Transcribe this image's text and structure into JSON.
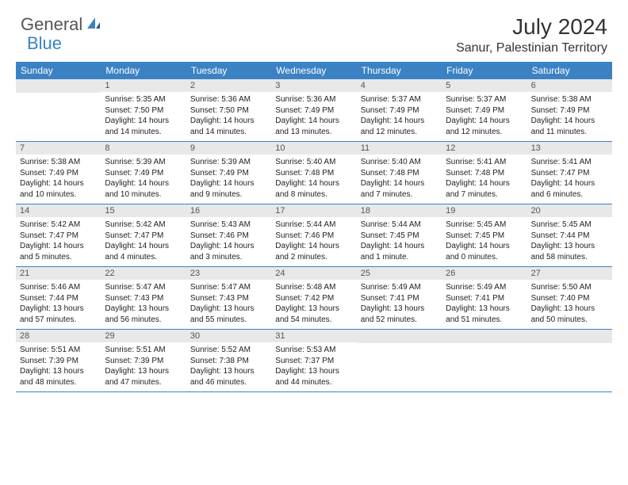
{
  "brand": {
    "part1": "General",
    "part2": "Blue"
  },
  "title": "July 2024",
  "location": "Sanur, Palestinian Territory",
  "colors": {
    "header_bg": "#3b82c4",
    "header_text": "#ffffff",
    "daynum_bg": "#e8e8e8",
    "text": "#222222",
    "rule": "#3b82c4"
  },
  "dayNames": [
    "Sunday",
    "Monday",
    "Tuesday",
    "Wednesday",
    "Thursday",
    "Friday",
    "Saturday"
  ],
  "weeks": [
    [
      null,
      {
        "d": "1",
        "sr": "Sunrise: 5:35 AM",
        "ss": "Sunset: 7:50 PM",
        "dl1": "Daylight: 14 hours",
        "dl2": "and 14 minutes."
      },
      {
        "d": "2",
        "sr": "Sunrise: 5:36 AM",
        "ss": "Sunset: 7:50 PM",
        "dl1": "Daylight: 14 hours",
        "dl2": "and 14 minutes."
      },
      {
        "d": "3",
        "sr": "Sunrise: 5:36 AM",
        "ss": "Sunset: 7:49 PM",
        "dl1": "Daylight: 14 hours",
        "dl2": "and 13 minutes."
      },
      {
        "d": "4",
        "sr": "Sunrise: 5:37 AM",
        "ss": "Sunset: 7:49 PM",
        "dl1": "Daylight: 14 hours",
        "dl2": "and 12 minutes."
      },
      {
        "d": "5",
        "sr": "Sunrise: 5:37 AM",
        "ss": "Sunset: 7:49 PM",
        "dl1": "Daylight: 14 hours",
        "dl2": "and 12 minutes."
      },
      {
        "d": "6",
        "sr": "Sunrise: 5:38 AM",
        "ss": "Sunset: 7:49 PM",
        "dl1": "Daylight: 14 hours",
        "dl2": "and 11 minutes."
      }
    ],
    [
      {
        "d": "7",
        "sr": "Sunrise: 5:38 AM",
        "ss": "Sunset: 7:49 PM",
        "dl1": "Daylight: 14 hours",
        "dl2": "and 10 minutes."
      },
      {
        "d": "8",
        "sr": "Sunrise: 5:39 AM",
        "ss": "Sunset: 7:49 PM",
        "dl1": "Daylight: 14 hours",
        "dl2": "and 10 minutes."
      },
      {
        "d": "9",
        "sr": "Sunrise: 5:39 AM",
        "ss": "Sunset: 7:49 PM",
        "dl1": "Daylight: 14 hours",
        "dl2": "and 9 minutes."
      },
      {
        "d": "10",
        "sr": "Sunrise: 5:40 AM",
        "ss": "Sunset: 7:48 PM",
        "dl1": "Daylight: 14 hours",
        "dl2": "and 8 minutes."
      },
      {
        "d": "11",
        "sr": "Sunrise: 5:40 AM",
        "ss": "Sunset: 7:48 PM",
        "dl1": "Daylight: 14 hours",
        "dl2": "and 7 minutes."
      },
      {
        "d": "12",
        "sr": "Sunrise: 5:41 AM",
        "ss": "Sunset: 7:48 PM",
        "dl1": "Daylight: 14 hours",
        "dl2": "and 7 minutes."
      },
      {
        "d": "13",
        "sr": "Sunrise: 5:41 AM",
        "ss": "Sunset: 7:47 PM",
        "dl1": "Daylight: 14 hours",
        "dl2": "and 6 minutes."
      }
    ],
    [
      {
        "d": "14",
        "sr": "Sunrise: 5:42 AM",
        "ss": "Sunset: 7:47 PM",
        "dl1": "Daylight: 14 hours",
        "dl2": "and 5 minutes."
      },
      {
        "d": "15",
        "sr": "Sunrise: 5:42 AM",
        "ss": "Sunset: 7:47 PM",
        "dl1": "Daylight: 14 hours",
        "dl2": "and 4 minutes."
      },
      {
        "d": "16",
        "sr": "Sunrise: 5:43 AM",
        "ss": "Sunset: 7:46 PM",
        "dl1": "Daylight: 14 hours",
        "dl2": "and 3 minutes."
      },
      {
        "d": "17",
        "sr": "Sunrise: 5:44 AM",
        "ss": "Sunset: 7:46 PM",
        "dl1": "Daylight: 14 hours",
        "dl2": "and 2 minutes."
      },
      {
        "d": "18",
        "sr": "Sunrise: 5:44 AM",
        "ss": "Sunset: 7:45 PM",
        "dl1": "Daylight: 14 hours",
        "dl2": "and 1 minute."
      },
      {
        "d": "19",
        "sr": "Sunrise: 5:45 AM",
        "ss": "Sunset: 7:45 PM",
        "dl1": "Daylight: 14 hours",
        "dl2": "and 0 minutes."
      },
      {
        "d": "20",
        "sr": "Sunrise: 5:45 AM",
        "ss": "Sunset: 7:44 PM",
        "dl1": "Daylight: 13 hours",
        "dl2": "and 58 minutes."
      }
    ],
    [
      {
        "d": "21",
        "sr": "Sunrise: 5:46 AM",
        "ss": "Sunset: 7:44 PM",
        "dl1": "Daylight: 13 hours",
        "dl2": "and 57 minutes."
      },
      {
        "d": "22",
        "sr": "Sunrise: 5:47 AM",
        "ss": "Sunset: 7:43 PM",
        "dl1": "Daylight: 13 hours",
        "dl2": "and 56 minutes."
      },
      {
        "d": "23",
        "sr": "Sunrise: 5:47 AM",
        "ss": "Sunset: 7:43 PM",
        "dl1": "Daylight: 13 hours",
        "dl2": "and 55 minutes."
      },
      {
        "d": "24",
        "sr": "Sunrise: 5:48 AM",
        "ss": "Sunset: 7:42 PM",
        "dl1": "Daylight: 13 hours",
        "dl2": "and 54 minutes."
      },
      {
        "d": "25",
        "sr": "Sunrise: 5:49 AM",
        "ss": "Sunset: 7:41 PM",
        "dl1": "Daylight: 13 hours",
        "dl2": "and 52 minutes."
      },
      {
        "d": "26",
        "sr": "Sunrise: 5:49 AM",
        "ss": "Sunset: 7:41 PM",
        "dl1": "Daylight: 13 hours",
        "dl2": "and 51 minutes."
      },
      {
        "d": "27",
        "sr": "Sunrise: 5:50 AM",
        "ss": "Sunset: 7:40 PM",
        "dl1": "Daylight: 13 hours",
        "dl2": "and 50 minutes."
      }
    ],
    [
      {
        "d": "28",
        "sr": "Sunrise: 5:51 AM",
        "ss": "Sunset: 7:39 PM",
        "dl1": "Daylight: 13 hours",
        "dl2": "and 48 minutes."
      },
      {
        "d": "29",
        "sr": "Sunrise: 5:51 AM",
        "ss": "Sunset: 7:39 PM",
        "dl1": "Daylight: 13 hours",
        "dl2": "and 47 minutes."
      },
      {
        "d": "30",
        "sr": "Sunrise: 5:52 AM",
        "ss": "Sunset: 7:38 PM",
        "dl1": "Daylight: 13 hours",
        "dl2": "and 46 minutes."
      },
      {
        "d": "31",
        "sr": "Sunrise: 5:53 AM",
        "ss": "Sunset: 7:37 PM",
        "dl1": "Daylight: 13 hours",
        "dl2": "and 44 minutes."
      },
      null,
      null,
      null
    ]
  ]
}
